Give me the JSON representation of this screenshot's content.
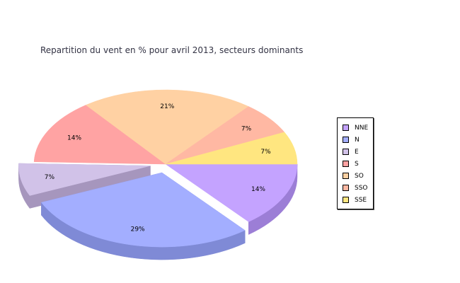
{
  "chart_data": {
    "type": "pie",
    "title": "Repartition du vent en % pour avril 2013, secteurs dominants",
    "categories": [
      "NNE",
      "N",
      "E",
      "S",
      "SO",
      "SSO",
      "SSE"
    ],
    "values": [
      14,
      29,
      7,
      14,
      21,
      7,
      7
    ],
    "value_labels": [
      "14%",
      "29%",
      "7%",
      "14%",
      "21%",
      "7%",
      "7%"
    ],
    "exploded": [
      "N",
      "E"
    ],
    "style": "3d",
    "legend_position": "right",
    "colors": [
      "#c4a3ff",
      "#a3aeff",
      "#d1c2e8",
      "#ffa3a3",
      "#ffd1a3",
      "#ffb8a3",
      "#ffe680"
    ],
    "side_colors": [
      "#9c7ed6",
      "#7f8ad6",
      "#a696bd",
      "#d67f7f",
      "#d6a97f",
      "#d6917f",
      "#d6bc5a"
    ]
  }
}
